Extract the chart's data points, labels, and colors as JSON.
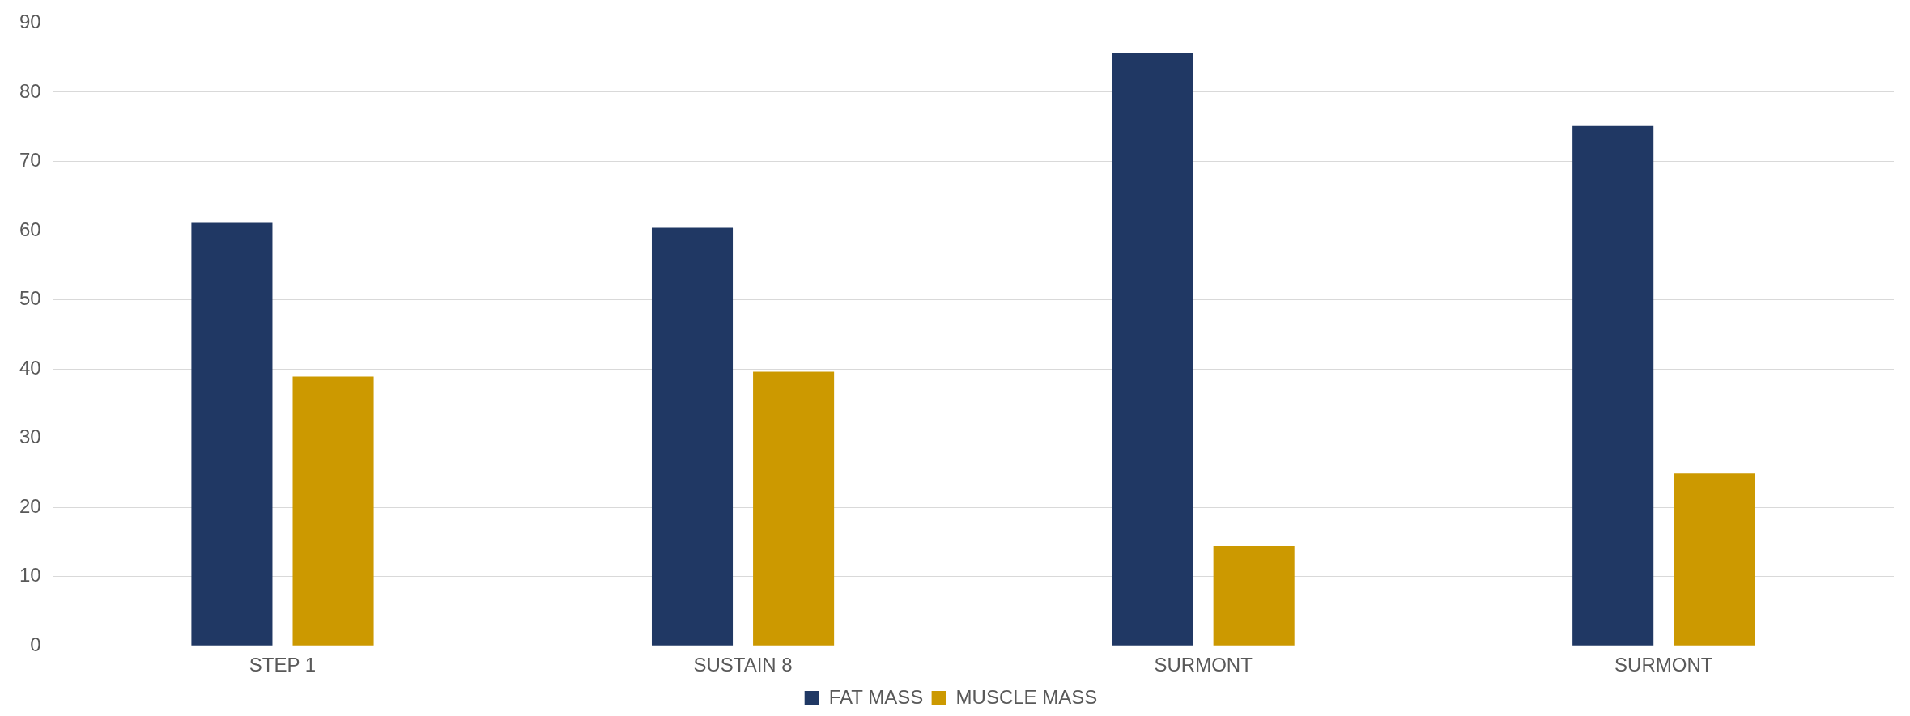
{
  "chart_data": {
    "type": "bar",
    "categories": [
      "STEP 1",
      "SUSTAIN 8",
      "SURMONT",
      "SURMONT"
    ],
    "series": [
      {
        "name": "FAT MASS",
        "color": "#203864",
        "values": [
          61.1,
          60.4,
          85.7,
          75.1
        ]
      },
      {
        "name": "MUSCLE MASS",
        "color": "#cc9900",
        "values": [
          38.9,
          39.6,
          14.4,
          24.9
        ]
      }
    ],
    "ylim": [
      0,
      90
    ],
    "yticks": [
      0,
      10,
      20,
      30,
      40,
      50,
      60,
      70,
      80,
      90
    ],
    "grid": "y",
    "legend": "bottom"
  }
}
